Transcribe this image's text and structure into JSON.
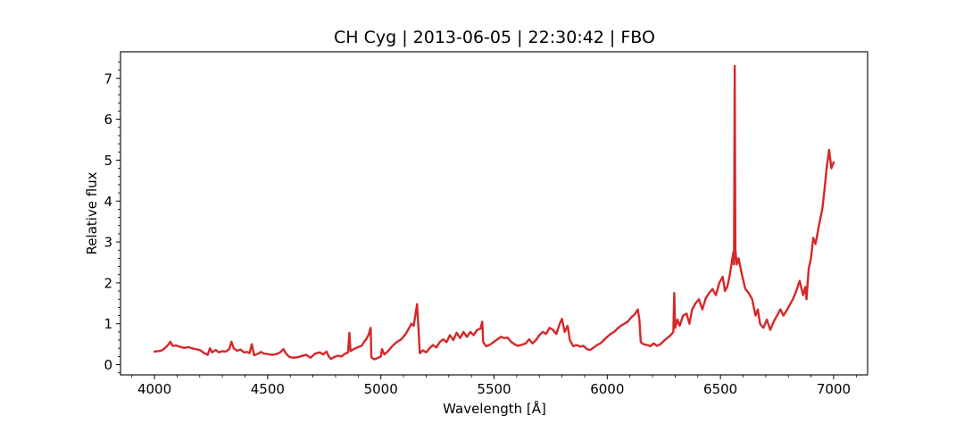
{
  "chart_data": {
    "type": "line",
    "title": "CH Cyg | 2013-06-05 | 22:30:42 | FBO",
    "xlabel": "Wavelength [Å]",
    "ylabel": "Relative flux",
    "xlim": [
      3850,
      7150
    ],
    "ylim": [
      -0.25,
      7.65
    ],
    "xticks": [
      4000,
      4500,
      5000,
      5500,
      6000,
      6500,
      7000
    ],
    "yticks": [
      0,
      1,
      2,
      3,
      4,
      5,
      6,
      7
    ],
    "xtick_labels": [
      "4000",
      "4500",
      "5000",
      "5500",
      "6000",
      "6500",
      "7000"
    ],
    "ytick_labels": [
      "0",
      "1",
      "2",
      "3",
      "4",
      "5",
      "6",
      "7"
    ],
    "grid": false,
    "series": [
      {
        "color": "#d62728",
        "points": [
          [
            4000,
            0.32
          ],
          [
            4015,
            0.33
          ],
          [
            4030,
            0.34
          ],
          [
            4045,
            0.4
          ],
          [
            4060,
            0.48
          ],
          [
            4070,
            0.56
          ],
          [
            4080,
            0.46
          ],
          [
            4095,
            0.47
          ],
          [
            4110,
            0.44
          ],
          [
            4130,
            0.41
          ],
          [
            4150,
            0.43
          ],
          [
            4165,
            0.4
          ],
          [
            4180,
            0.38
          ],
          [
            4200,
            0.36
          ],
          [
            4220,
            0.28
          ],
          [
            4235,
            0.24
          ],
          [
            4245,
            0.4
          ],
          [
            4255,
            0.3
          ],
          [
            4270,
            0.36
          ],
          [
            4285,
            0.3
          ],
          [
            4300,
            0.33
          ],
          [
            4315,
            0.32
          ],
          [
            4330,
            0.38
          ],
          [
            4340,
            0.56
          ],
          [
            4350,
            0.4
          ],
          [
            4365,
            0.34
          ],
          [
            4380,
            0.37
          ],
          [
            4395,
            0.3
          ],
          [
            4410,
            0.31
          ],
          [
            4420,
            0.28
          ],
          [
            4430,
            0.5
          ],
          [
            4440,
            0.23
          ],
          [
            4455,
            0.26
          ],
          [
            4470,
            0.31
          ],
          [
            4485,
            0.27
          ],
          [
            4500,
            0.26
          ],
          [
            4520,
            0.24
          ],
          [
            4540,
            0.26
          ],
          [
            4555,
            0.3
          ],
          [
            4570,
            0.38
          ],
          [
            4580,
            0.28
          ],
          [
            4595,
            0.19
          ],
          [
            4610,
            0.17
          ],
          [
            4630,
            0.18
          ],
          [
            4650,
            0.21
          ],
          [
            4670,
            0.24
          ],
          [
            4690,
            0.17
          ],
          [
            4710,
            0.27
          ],
          [
            4730,
            0.3
          ],
          [
            4745,
            0.25
          ],
          [
            4760,
            0.32
          ],
          [
            4770,
            0.2
          ],
          [
            4780,
            0.14
          ],
          [
            4795,
            0.19
          ],
          [
            4810,
            0.22
          ],
          [
            4825,
            0.2
          ],
          [
            4840,
            0.26
          ],
          [
            4855,
            0.3
          ],
          [
            4861,
            0.78
          ],
          [
            4866,
            0.33
          ],
          [
            4880,
            0.38
          ],
          [
            4900,
            0.43
          ],
          [
            4915,
            0.46
          ],
          [
            4925,
            0.55
          ],
          [
            4935,
            0.62
          ],
          [
            4945,
            0.72
          ],
          [
            4955,
            0.9
          ],
          [
            4958,
            0.18
          ],
          [
            4970,
            0.13
          ],
          [
            4985,
            0.16
          ],
          [
            5000,
            0.2
          ],
          [
            5005,
            0.38
          ],
          [
            5015,
            0.25
          ],
          [
            5030,
            0.32
          ],
          [
            5050,
            0.45
          ],
          [
            5070,
            0.55
          ],
          [
            5090,
            0.62
          ],
          [
            5110,
            0.75
          ],
          [
            5125,
            0.9
          ],
          [
            5135,
            1.0
          ],
          [
            5145,
            0.95
          ],
          [
            5155,
            1.3
          ],
          [
            5160,
            1.48
          ],
          [
            5166,
            0.9
          ],
          [
            5172,
            0.28
          ],
          [
            5185,
            0.35
          ],
          [
            5200,
            0.3
          ],
          [
            5215,
            0.4
          ],
          [
            5230,
            0.48
          ],
          [
            5245,
            0.42
          ],
          [
            5260,
            0.55
          ],
          [
            5275,
            0.62
          ],
          [
            5290,
            0.55
          ],
          [
            5305,
            0.72
          ],
          [
            5320,
            0.6
          ],
          [
            5335,
            0.78
          ],
          [
            5350,
            0.65
          ],
          [
            5365,
            0.8
          ],
          [
            5380,
            0.68
          ],
          [
            5395,
            0.8
          ],
          [
            5410,
            0.72
          ],
          [
            5425,
            0.85
          ],
          [
            5440,
            0.88
          ],
          [
            5448,
            1.05
          ],
          [
            5452,
            0.55
          ],
          [
            5465,
            0.45
          ],
          [
            5480,
            0.48
          ],
          [
            5500,
            0.56
          ],
          [
            5515,
            0.62
          ],
          [
            5530,
            0.68
          ],
          [
            5545,
            0.65
          ],
          [
            5560,
            0.66
          ],
          [
            5575,
            0.56
          ],
          [
            5590,
            0.5
          ],
          [
            5605,
            0.46
          ],
          [
            5620,
            0.48
          ],
          [
            5640,
            0.52
          ],
          [
            5655,
            0.62
          ],
          [
            5670,
            0.52
          ],
          [
            5685,
            0.6
          ],
          [
            5700,
            0.72
          ],
          [
            5715,
            0.8
          ],
          [
            5730,
            0.75
          ],
          [
            5745,
            0.9
          ],
          [
            5760,
            0.85
          ],
          [
            5775,
            0.75
          ],
          [
            5790,
            1.0
          ],
          [
            5800,
            1.12
          ],
          [
            5812,
            0.8
          ],
          [
            5825,
            0.95
          ],
          [
            5835,
            0.6
          ],
          [
            5850,
            0.45
          ],
          [
            5865,
            0.48
          ],
          [
            5880,
            0.44
          ],
          [
            5895,
            0.46
          ],
          [
            5910,
            0.38
          ],
          [
            5925,
            0.36
          ],
          [
            5940,
            0.42
          ],
          [
            5955,
            0.48
          ],
          [
            5970,
            0.52
          ],
          [
            5985,
            0.6
          ],
          [
            6000,
            0.68
          ],
          [
            6015,
            0.75
          ],
          [
            6030,
            0.8
          ],
          [
            6045,
            0.88
          ],
          [
            6060,
            0.95
          ],
          [
            6075,
            1.0
          ],
          [
            6090,
            1.05
          ],
          [
            6105,
            1.15
          ],
          [
            6120,
            1.22
          ],
          [
            6135,
            1.35
          ],
          [
            6142,
            1.1
          ],
          [
            6148,
            0.55
          ],
          [
            6160,
            0.5
          ],
          [
            6175,
            0.48
          ],
          [
            6190,
            0.45
          ],
          [
            6205,
            0.52
          ],
          [
            6220,
            0.46
          ],
          [
            6235,
            0.5
          ],
          [
            6250,
            0.58
          ],
          [
            6265,
            0.65
          ],
          [
            6280,
            0.72
          ],
          [
            6292,
            0.8
          ],
          [
            6296,
            1.75
          ],
          [
            6300,
            0.9
          ],
          [
            6310,
            1.1
          ],
          [
            6320,
            0.95
          ],
          [
            6335,
            1.2
          ],
          [
            6350,
            1.25
          ],
          [
            6363,
            1.0
          ],
          [
            6375,
            1.35
          ],
          [
            6390,
            1.5
          ],
          [
            6405,
            1.6
          ],
          [
            6420,
            1.35
          ],
          [
            6435,
            1.62
          ],
          [
            6450,
            1.75
          ],
          [
            6465,
            1.85
          ],
          [
            6480,
            1.7
          ],
          [
            6495,
            2.0
          ],
          [
            6510,
            2.15
          ],
          [
            6520,
            1.8
          ],
          [
            6530,
            1.9
          ],
          [
            6540,
            2.15
          ],
          [
            6550,
            2.5
          ],
          [
            6557,
            2.75
          ],
          [
            6560,
            2.45
          ],
          [
            6563,
            7.3
          ],
          [
            6566,
            2.8
          ],
          [
            6572,
            2.45
          ],
          [
            6580,
            2.6
          ],
          [
            6595,
            2.2
          ],
          [
            6610,
            1.85
          ],
          [
            6625,
            1.75
          ],
          [
            6640,
            1.6
          ],
          [
            6655,
            1.2
          ],
          [
            6665,
            1.35
          ],
          [
            6675,
            1.0
          ],
          [
            6690,
            0.9
          ],
          [
            6705,
            1.1
          ],
          [
            6720,
            0.85
          ],
          [
            6735,
            1.05
          ],
          [
            6750,
            1.2
          ],
          [
            6765,
            1.35
          ],
          [
            6778,
            1.2
          ],
          [
            6790,
            1.3
          ],
          [
            6805,
            1.45
          ],
          [
            6820,
            1.6
          ],
          [
            6835,
            1.8
          ],
          [
            6850,
            2.05
          ],
          [
            6865,
            1.7
          ],
          [
            6875,
            1.9
          ],
          [
            6880,
            1.6
          ],
          [
            6890,
            2.35
          ],
          [
            6900,
            2.6
          ],
          [
            6910,
            3.1
          ],
          [
            6920,
            2.95
          ],
          [
            6935,
            3.4
          ],
          [
            6950,
            3.8
          ],
          [
            6960,
            4.3
          ],
          [
            6970,
            4.85
          ],
          [
            6980,
            5.25
          ],
          [
            6990,
            4.8
          ],
          [
            7000,
            4.95
          ]
        ]
      }
    ]
  }
}
